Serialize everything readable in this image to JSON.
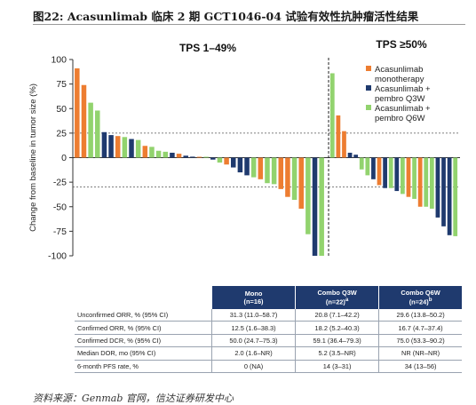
{
  "figure": {
    "title": "图22: Acasunlimab 临床 2 期 GCT1046-04 试验有效性抗肿瘤活性结果",
    "source_note": "资料来源：Genmab 官网，信达证券研发中心"
  },
  "chart_data": {
    "type": "bar",
    "ylabel": "Change from baseline in tumor size (%)",
    "ylim": [
      -100,
      100
    ],
    "yticks": [
      100,
      75,
      50,
      25,
      0,
      -25,
      -50,
      -75,
      -100
    ],
    "reference_lines": [
      25,
      -30
    ],
    "groups": [
      {
        "label": "TPS 1–49%"
      },
      {
        "label": "TPS ≥50%"
      }
    ],
    "colors": {
      "Acasunlimab monotherapy": "#ed7d31",
      "Acasunlimab + pembro Q3W": "#1f3a6e",
      "Acasunlimab + pembro Q6W": "#92d36e"
    },
    "legend": {
      "placement": "top-right",
      "items": [
        {
          "name": "Acasunlimab monotherapy",
          "line1": "Acasunlimab",
          "line2": "monotherapy"
        },
        {
          "name": "Acasunlimab + pembro Q3W",
          "line1": "Acasunlimab +",
          "line2": "pembro Q3W"
        },
        {
          "name": "Acasunlimab + pembro Q6W",
          "line1": "Acasunlimab +",
          "line2": "pembro Q6W"
        }
      ]
    },
    "bars": [
      {
        "group": 0,
        "series": "Acasunlimab monotherapy",
        "value": 91
      },
      {
        "group": 0,
        "series": "Acasunlimab monotherapy",
        "value": 74
      },
      {
        "group": 0,
        "series": "Acasunlimab + pembro Q6W",
        "value": 56
      },
      {
        "group": 0,
        "series": "Acasunlimab + pembro Q6W",
        "value": 48
      },
      {
        "group": 0,
        "series": "Acasunlimab + pembro Q3W",
        "value": 26
      },
      {
        "group": 0,
        "series": "Acasunlimab + pembro Q3W",
        "value": 23
      },
      {
        "group": 0,
        "series": "Acasunlimab monotherapy",
        "value": 22
      },
      {
        "group": 0,
        "series": "Acasunlimab + pembro Q6W",
        "value": 21
      },
      {
        "group": 0,
        "series": "Acasunlimab + pembro Q3W",
        "value": 19
      },
      {
        "group": 0,
        "series": "Acasunlimab + pembro Q6W",
        "value": 18
      },
      {
        "group": 0,
        "series": "Acasunlimab monotherapy",
        "value": 12
      },
      {
        "group": 0,
        "series": "Acasunlimab + pembro Q6W",
        "value": 11
      },
      {
        "group": 0,
        "series": "Acasunlimab + pembro Q6W",
        "value": 7
      },
      {
        "group": 0,
        "series": "Acasunlimab + pembro Q6W",
        "value": 6
      },
      {
        "group": 0,
        "series": "Acasunlimab + pembro Q3W",
        "value": 5
      },
      {
        "group": 0,
        "series": "Acasunlimab monotherapy",
        "value": 4
      },
      {
        "group": 0,
        "series": "Acasunlimab + pembro Q3W",
        "value": 2
      },
      {
        "group": 0,
        "series": "Acasunlimab + pembro Q3W",
        "value": 1
      },
      {
        "group": 0,
        "series": "Acasunlimab monotherapy",
        "value": 0
      },
      {
        "group": 0,
        "series": "Acasunlimab + pembro Q6W",
        "value": 0
      },
      {
        "group": 0,
        "series": "Acasunlimab + pembro Q3W",
        "value": -2
      },
      {
        "group": 0,
        "series": "Acasunlimab + pembro Q6W",
        "value": -5
      },
      {
        "group": 0,
        "series": "Acasunlimab monotherapy",
        "value": -7
      },
      {
        "group": 0,
        "series": "Acasunlimab + pembro Q3W",
        "value": -10
      },
      {
        "group": 0,
        "series": "Acasunlimab + pembro Q3W",
        "value": -15
      },
      {
        "group": 0,
        "series": "Acasunlimab + pembro Q3W",
        "value": -18
      },
      {
        "group": 0,
        "series": "Acasunlimab + pembro Q6W",
        "value": -20
      },
      {
        "group": 0,
        "series": "Acasunlimab monotherapy",
        "value": -22
      },
      {
        "group": 0,
        "series": "Acasunlimab + pembro Q6W",
        "value": -26
      },
      {
        "group": 0,
        "series": "Acasunlimab + pembro Q6W",
        "value": -27
      },
      {
        "group": 0,
        "series": "Acasunlimab monotherapy",
        "value": -32
      },
      {
        "group": 0,
        "series": "Acasunlimab monotherapy",
        "value": -40
      },
      {
        "group": 0,
        "series": "Acasunlimab + pembro Q6W",
        "value": -43
      },
      {
        "group": 0,
        "series": "Acasunlimab monotherapy",
        "value": -52
      },
      {
        "group": 0,
        "series": "Acasunlimab + pembro Q6W",
        "value": -78
      },
      {
        "group": 0,
        "series": "Acasunlimab + pembro Q3W",
        "value": -100
      },
      {
        "group": 0,
        "series": "Acasunlimab + pembro Q6W",
        "value": -100
      },
      {
        "group": 1,
        "series": "Acasunlimab + pembro Q6W",
        "value": 86
      },
      {
        "group": 1,
        "series": "Acasunlimab monotherapy",
        "value": 43
      },
      {
        "group": 1,
        "series": "Acasunlimab monotherapy",
        "value": 27
      },
      {
        "group": 1,
        "series": "Acasunlimab + pembro Q3W",
        "value": 5
      },
      {
        "group": 1,
        "series": "Acasunlimab + pembro Q3W",
        "value": 3
      },
      {
        "group": 1,
        "series": "Acasunlimab + pembro Q6W",
        "value": -12
      },
      {
        "group": 1,
        "series": "Acasunlimab + pembro Q6W",
        "value": -18
      },
      {
        "group": 1,
        "series": "Acasunlimab + pembro Q3W",
        "value": -22
      },
      {
        "group": 1,
        "series": "Acasunlimab monotherapy",
        "value": -28
      },
      {
        "group": 1,
        "series": "Acasunlimab + pembro Q3W",
        "value": -31
      },
      {
        "group": 1,
        "series": "Acasunlimab + pembro Q6W",
        "value": -31
      },
      {
        "group": 1,
        "series": "Acasunlimab + pembro Q3W",
        "value": -34
      },
      {
        "group": 1,
        "series": "Acasunlimab + pembro Q6W",
        "value": -37
      },
      {
        "group": 1,
        "series": "Acasunlimab monotherapy",
        "value": -40
      },
      {
        "group": 1,
        "series": "Acasunlimab + pembro Q6W",
        "value": -42
      },
      {
        "group": 1,
        "series": "Acasunlimab monotherapy",
        "value": -50
      },
      {
        "group": 1,
        "series": "Acasunlimab + pembro Q6W",
        "value": -50
      },
      {
        "group": 1,
        "series": "Acasunlimab + pembro Q6W",
        "value": -52
      },
      {
        "group": 1,
        "series": "Acasunlimab + pembro Q3W",
        "value": -61
      },
      {
        "group": 1,
        "series": "Acasunlimab + pembro Q3W",
        "value": -70
      },
      {
        "group": 1,
        "series": "Acasunlimab + pembro Q3W",
        "value": -79
      },
      {
        "group": 1,
        "series": "Acasunlimab + pembro Q6W",
        "value": -80
      }
    ]
  },
  "table": {
    "columns": [
      {
        "line1": "Mono",
        "line2": "(n=16)",
        "sup": ""
      },
      {
        "line1": "Combo Q3W",
        "line2": "(n=22)",
        "sup": "a"
      },
      {
        "line1": "Combo Q6W",
        "line2": "(n=24)",
        "sup": "b"
      }
    ],
    "rows": [
      {
        "label": "Unconfirmed ORR, %  (95% CI)",
        "values": [
          "31.3 (11.0–58.7)",
          "20.8 (7.1–42.2)",
          "29.6 (13.8–50.2)"
        ]
      },
      {
        "label": "Confirmed ORR, % (95% CI)",
        "values": [
          "12.5 (1.6–38.3)",
          "18.2 (5.2–40.3)",
          "16.7 (4.7–37.4)"
        ]
      },
      {
        "label": "Confirmed DCR, % (95% CI)",
        "values": [
          "50.0 (24.7–75.3)",
          "59.1 (36.4–79.3)",
          "75.0 (53.3–90.2)"
        ]
      },
      {
        "label": "Median DOR, mo (95% CI)",
        "values": [
          "2.0 (1.6–NR)",
          "5.2 (3.5–NR)",
          "NR (NR–NR)"
        ]
      },
      {
        "label": "6-month PFS rate, %",
        "values": [
          "0 (NA)",
          "14 (3–31)",
          "34 (13–56)"
        ]
      }
    ]
  }
}
